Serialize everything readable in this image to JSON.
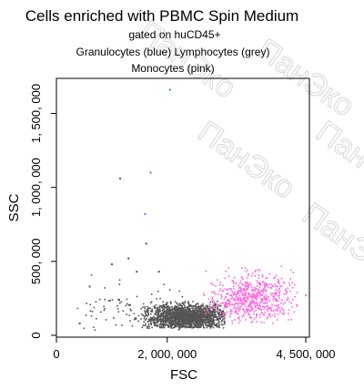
{
  "chart_data": {
    "type": "scatter",
    "title": "Cells enriched with PBMC Spin Medium",
    "subtitles": [
      "gated on huCD45+",
      "Granulocytes (blue) Lymphocytes (grey)",
      "Monocytes (pink)"
    ],
    "xlabel": "FSC",
    "ylabel": "SSC",
    "xlim": [
      0,
      4500000
    ],
    "ylim": [
      0,
      1700000
    ],
    "x_ticks": [
      {
        "value": 0,
        "label": "0"
      },
      {
        "value": 2000000,
        "label": "2, 000, 000"
      },
      {
        "value": 4500000,
        "label": "4, 500, 000"
      }
    ],
    "y_ticks": [
      {
        "value": 0,
        "label": "0"
      },
      {
        "value": 500000,
        "label": "500, 000"
      },
      {
        "value": 1000000,
        "label": "1, 000, 000"
      },
      {
        "value": 1500000,
        "label": "1, 500, 000"
      }
    ],
    "grid": false,
    "legend": "none",
    "series": [
      {
        "name": "Lymphocytes",
        "color": "#555555",
        "clusters": [
          {
            "x_mean": 2350000,
            "y_mean": 120000,
            "x_sd": 380000,
            "y_sd": 45000,
            "n": 1800,
            "x_min": 1550000,
            "x_max": 3050000,
            "y_min": 50000,
            "y_max": 230000
          },
          {
            "x_mean": 1500000,
            "y_mean": 140000,
            "x_sd": 550000,
            "y_sd": 90000,
            "n": 110,
            "x_min": 350000,
            "x_max": 2900000,
            "y_min": 30000,
            "y_max": 420000
          }
        ],
        "outliers": [
          [
            1150000,
            1060000
          ],
          [
            1620000,
            620000
          ],
          [
            1300000,
            520000
          ],
          [
            1000000,
            480000
          ],
          [
            1850000,
            430000
          ],
          [
            1450000,
            430000
          ],
          [
            600000,
            330000
          ],
          [
            420000,
            80000
          ]
        ]
      },
      {
        "name": "Monocytes",
        "color": "#ff66dd",
        "clusters": [
          {
            "x_mean": 3500000,
            "y_mean": 250000,
            "x_sd": 380000,
            "y_sd": 80000,
            "n": 650,
            "x_min": 2650000,
            "x_max": 4350000,
            "y_min": 80000,
            "y_max": 550000
          }
        ],
        "outliers": [
          [
            4500000,
            270000
          ]
        ]
      },
      {
        "name": "Granulocytes",
        "color": "#3388ff",
        "points": [
          [
            2050000,
            1660000
          ],
          [
            1700000,
            1100000
          ],
          [
            1600000,
            820000
          ]
        ]
      }
    ]
  },
  "watermark": {
    "text": "ПанЭко",
    "color": "#b8b8b8"
  }
}
